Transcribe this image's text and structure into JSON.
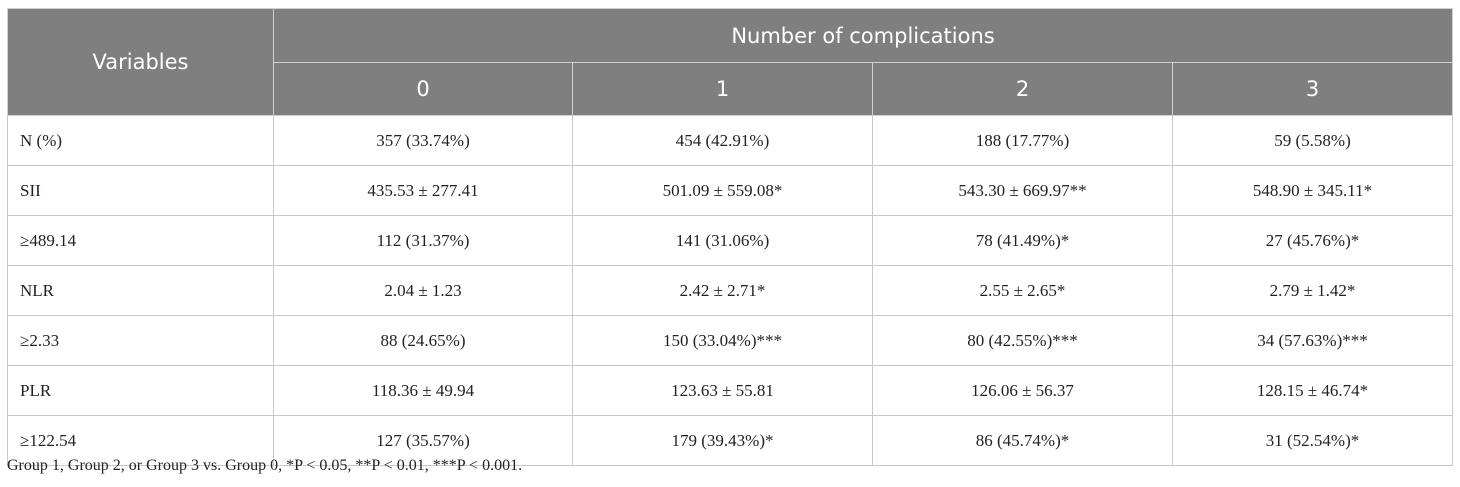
{
  "table": {
    "header": {
      "variables": "Variables",
      "group": "Number of complications",
      "columns": [
        "0",
        "1",
        "2",
        "3"
      ]
    },
    "rows": [
      [
        "N (%)",
        "357 (33.74%)",
        "454 (42.91%)",
        "188 (17.77%)",
        "59 (5.58%)"
      ],
      [
        "SII",
        "435.53 ± 277.41",
        "501.09 ± 559.08*",
        "543.30 ± 669.97**",
        "548.90 ± 345.11*"
      ],
      [
        "≥489.14",
        "112 (31.37%)",
        "141 (31.06%)",
        "78 (41.49%)*",
        "27 (45.76%)*"
      ],
      [
        "NLR",
        "2.04 ± 1.23",
        "2.42 ± 2.71*",
        "2.55 ± 2.65*",
        "2.79 ± 1.42*"
      ],
      [
        "≥2.33",
        "88 (24.65%)",
        "150 (33.04%)***",
        "80 (42.55%)***",
        "34 (57.63%)***"
      ],
      [
        "PLR",
        "118.36 ± 49.94",
        "123.63 ± 55.81",
        "126.06 ± 56.37",
        "128.15 ± 46.74*"
      ],
      [
        "≥122.54",
        "127 (35.57%)",
        "179 (39.43%)*",
        "86 (45.74%)*",
        "31 (52.54%)*"
      ]
    ]
  },
  "footnote": "Group 1, Group 2, or Group 3 vs. Group 0, *P < 0.05, **P < 0.01, ***P < 0.001."
}
